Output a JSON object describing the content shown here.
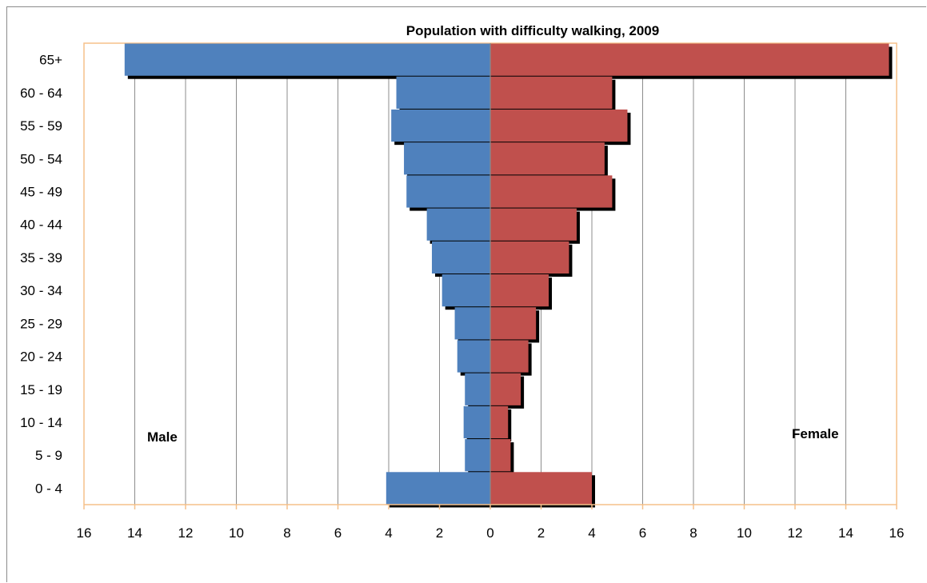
{
  "chart_data": {
    "type": "bar",
    "orientation": "horizontal",
    "style": "population-pyramid",
    "title": "Population with difficulty walking, 2009",
    "categories": [
      "0 - 4",
      "5 - 9",
      "10 - 14",
      "15 - 19",
      "20 - 24",
      "25 - 29",
      "30 - 34",
      "35 - 39",
      "40 - 44",
      "45 - 49",
      "50 - 54",
      "55 - 59",
      "60 - 64",
      "65+"
    ],
    "series": [
      {
        "name": "Male",
        "side": "left",
        "color": "#4f81bd",
        "values": [
          4.1,
          1.0,
          1.05,
          1.0,
          1.3,
          1.4,
          1.9,
          2.3,
          2.5,
          3.3,
          3.4,
          3.9,
          3.7,
          14.4
        ]
      },
      {
        "name": "Female",
        "side": "right",
        "color": "#c0504d",
        "values": [
          4.0,
          0.8,
          0.7,
          1.2,
          1.5,
          1.8,
          2.3,
          3.1,
          3.4,
          4.8,
          4.5,
          5.4,
          4.8,
          15.7
        ]
      }
    ],
    "x_tick_labels": [
      "16",
      "14",
      "12",
      "10",
      "8",
      "6",
      "4",
      "2",
      "0",
      "2",
      "4",
      "6",
      "8",
      "10",
      "12",
      "14",
      "16"
    ],
    "xlim": [
      -16,
      16
    ],
    "grid": "vertical",
    "shadow_color": "#000000",
    "plot_border_color": "#f5c08a",
    "legend": "none"
  }
}
